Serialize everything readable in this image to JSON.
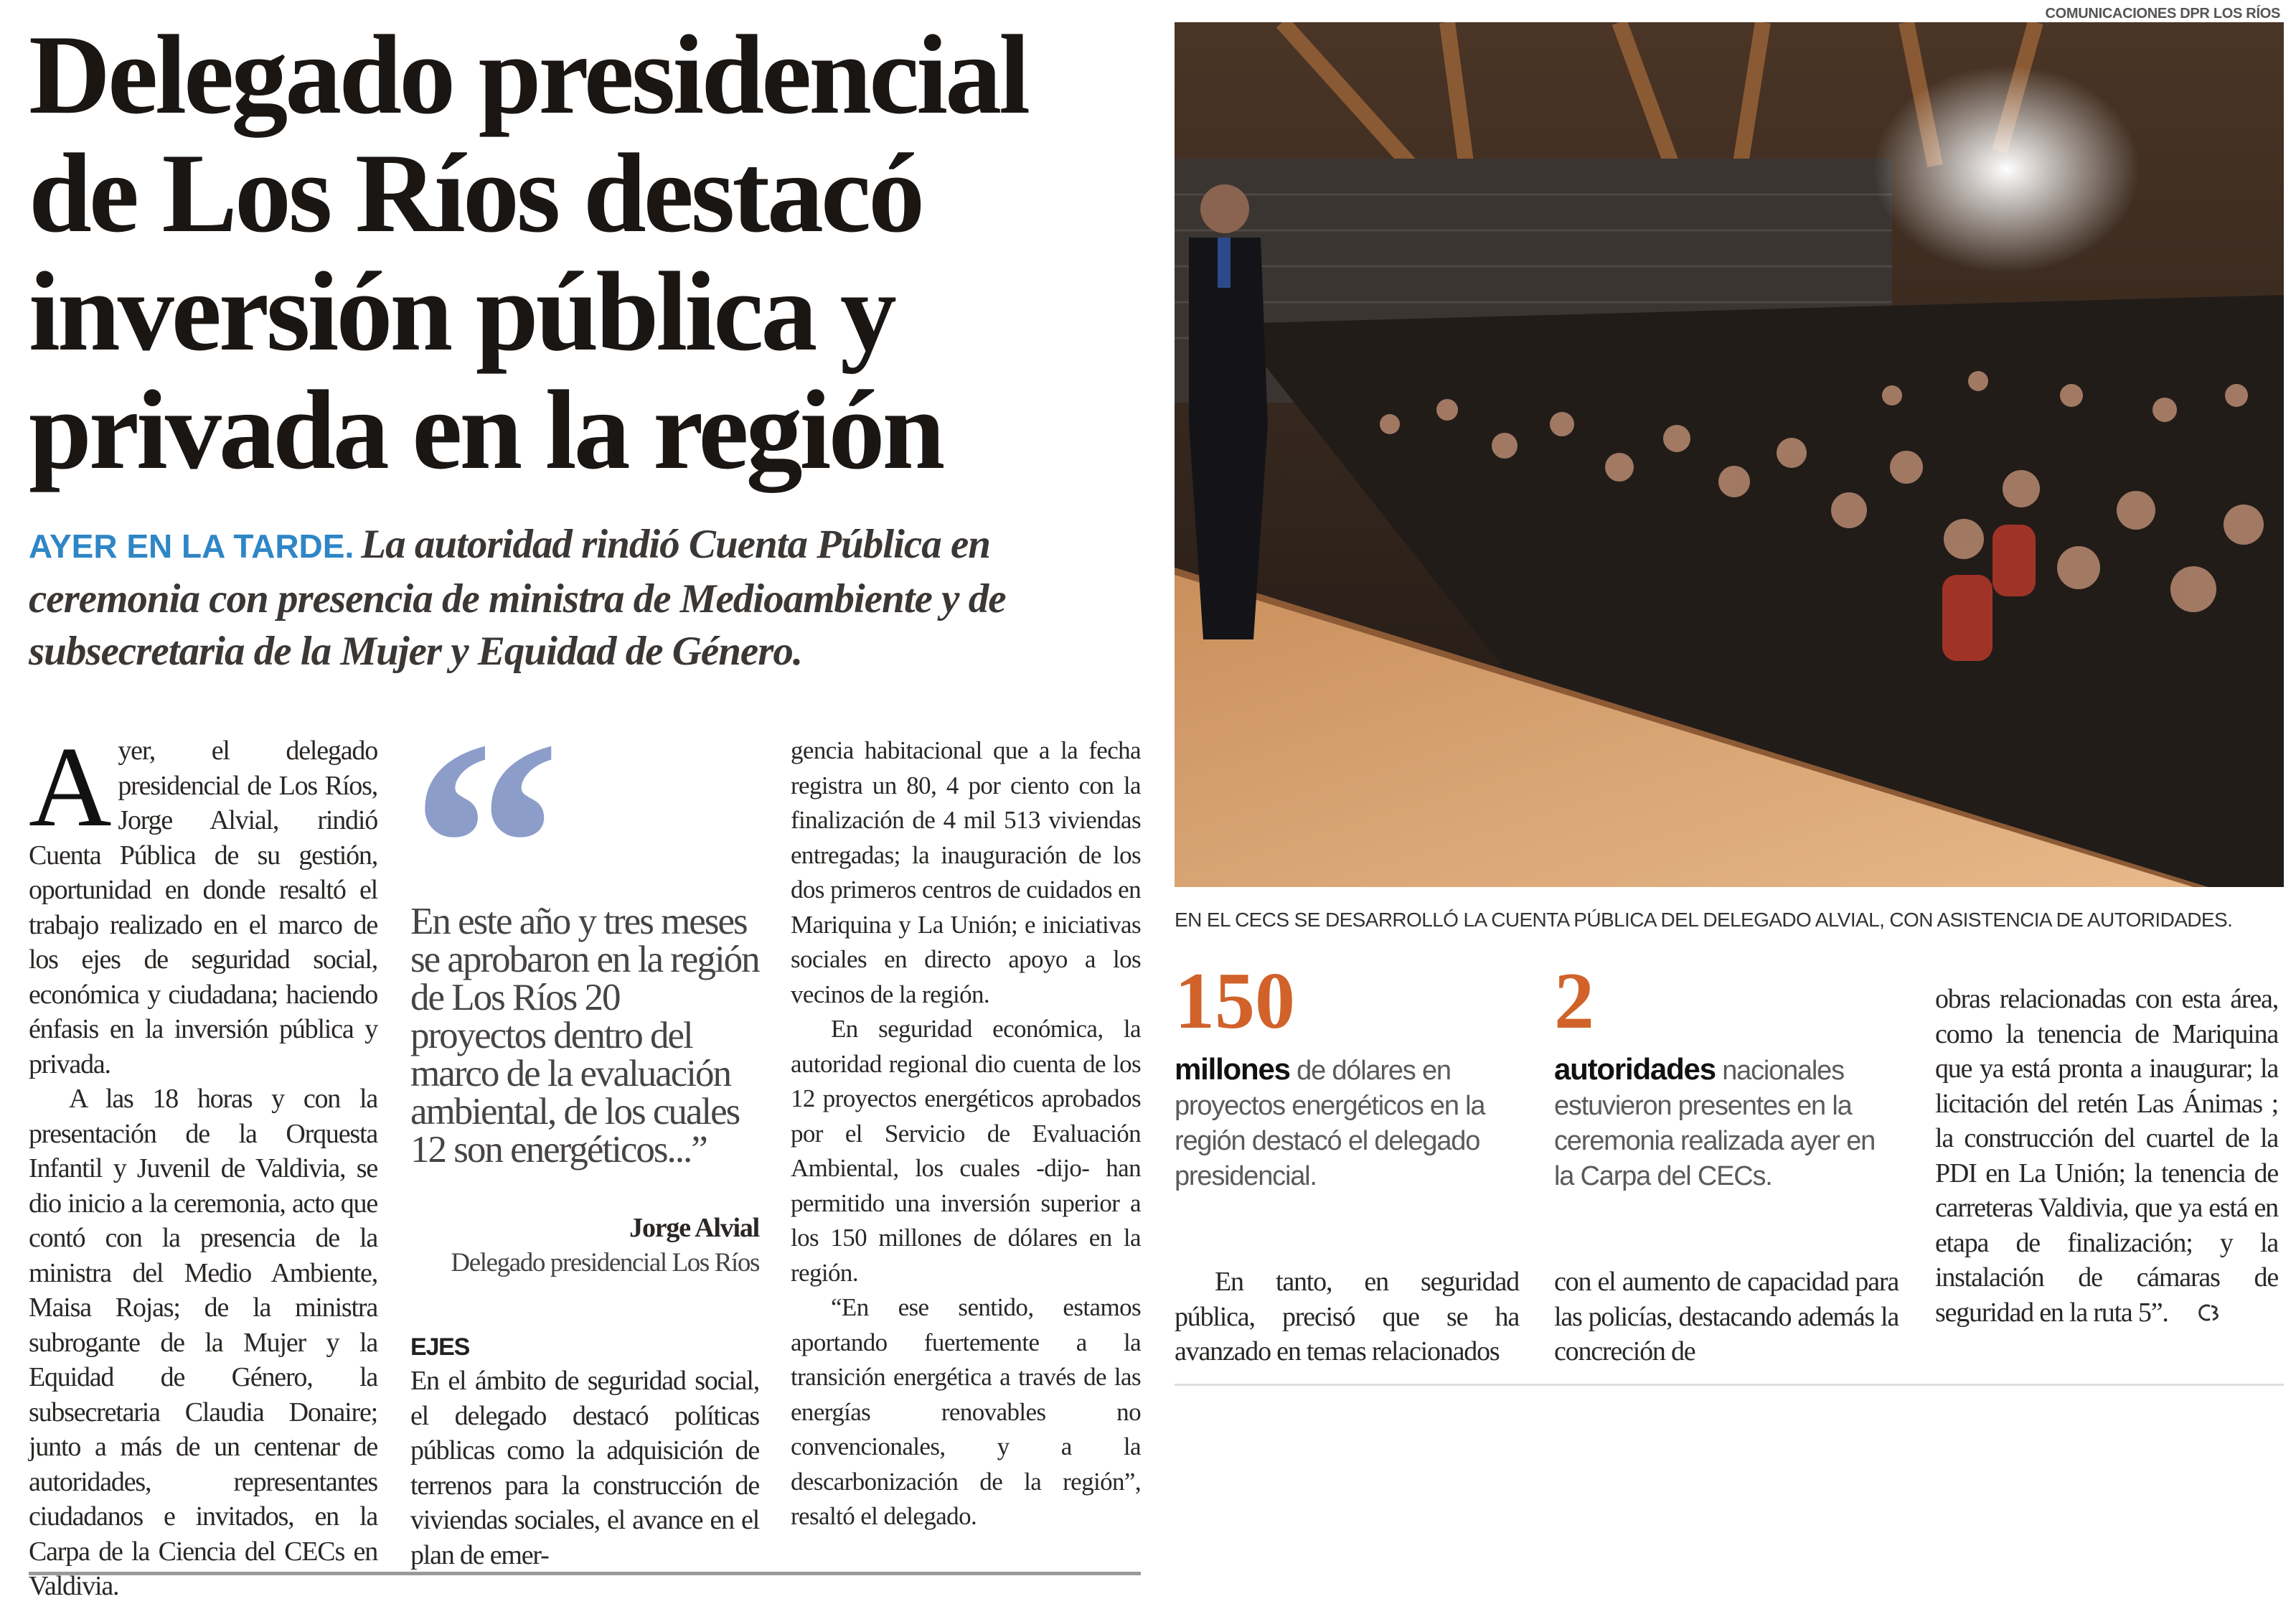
{
  "headline": {
    "lines": [
      "Delegado presidencial",
      "de Los Ríos destacó",
      "inversión pública y",
      "privada en la región"
    ]
  },
  "subhead": {
    "kicker": "AYER EN LA TARDE.",
    "text": "La autoridad rindió Cuenta Pública en ceremonia con presencia de ministra de Medioambiente y de subsecretaria de la Mujer y Equidad de Género."
  },
  "body": {
    "col1": {
      "dropcap": "A",
      "p1": "yer, el delegado presidencial de Los Ríos, Jorge Alvial, rindió Cuenta Pública de su gestión, oportunidad en donde resaltó el trabajo realizado en el marco de los ejes de seguridad social, económica y ciudadana; haciendo énfasis en la inversión pública y privada.",
      "p2": "A las 18 horas y con la presentación de la Orquesta Infantil y Juvenil de Valdivia, se dio inicio a la ceremonia, acto que contó con la presencia de la ministra del Medio Ambiente, Maisa Rojas; de la ministra subrogante de la Mujer y la Equidad de Género, la subsecretaria Claudia Donaire; junto a más de un centenar de autoridades, representantes ciudadanos e invitados, en la Carpa de la Ciencia del CECs en Valdivia."
    },
    "col2": {
      "quote_mark": "“",
      "quote": "En este año y tres meses se aprobaron en la región de Los Ríos 20 proyectos dentro del marco de la evaluación ambiental, de los cuales 12 son energéticos...”",
      "quote_author": "Jorge Alvial",
      "quote_role": "Delegado presidencial Los Ríos",
      "section_heading": "EJES",
      "p1": "En el ámbito de seguridad social, el delegado destacó políticas públicas como la adquisición de terrenos para la construcción de viviendas sociales, el avance en el plan de emer-"
    },
    "col3": {
      "p1": "gencia habitacional que a la fecha registra un 80, 4 por ciento con la finalización de 4 mil 513 viviendas entregadas; la inauguración de los dos primeros centros de cuidados en Mariquina y La Unión; e iniciativas sociales en directo apoyo a los vecinos de la región.",
      "p2": "En seguridad económica, la autoridad regional dio cuenta de los 12 proyectos energéticos aprobados por el Servicio de Evaluación Ambiental, los cuales -dijo- han permitido una inversión superior a los 150 millones de dólares en la región.",
      "p3": "“En ese sentido, estamos aportando fuertemente a la transición energética a través de las energías renovables no convencionales, y a la descarbonización de la región”, resaltó el delegado."
    }
  },
  "photo": {
    "credit": "COMUNICACIONES DPR LOS RÍOS",
    "caption": "EN EL CECS SE DESARROLLÓ LA CUENTA PÚBLICA DEL DELEGADO ALVIAL, CON ASISTENCIA DE AUTORIDADES."
  },
  "stats": [
    {
      "number": "150",
      "bold": "millones",
      "text": "de dólares en proyectos energéticos en la región destacó el delegado presidencial."
    },
    {
      "number": "2",
      "bold": "autoridades",
      "text": "nacionales estuvieron presentes en la ceremonia realizada ayer en la Carpa del CECs."
    }
  ],
  "right_body": {
    "colA": "En tanto, en seguridad pública, precisó que se ha avanzado en temas relacionados",
    "colB": "con el aumento de capacidad para las policías, destacando además la concreción de",
    "colC": "obras relacionadas con esta área, como la tenencia de Mariquina que ya está pronta a inaugurar; la licitación del retén Las Ánimas ; la construcción del cuartel de la PDI en La Unión; la tenencia de carreteras Valdivia, que ya está en etapa de finalización; y la instalación de cámaras de seguridad en la ruta 5”."
  },
  "colors": {
    "accent_orange": "#d0622a",
    "kicker_blue": "#2f86c6",
    "quote_mark": "#8c9dc9"
  },
  "icons": {
    "end_mark": "end-of-article-mark-icon"
  }
}
